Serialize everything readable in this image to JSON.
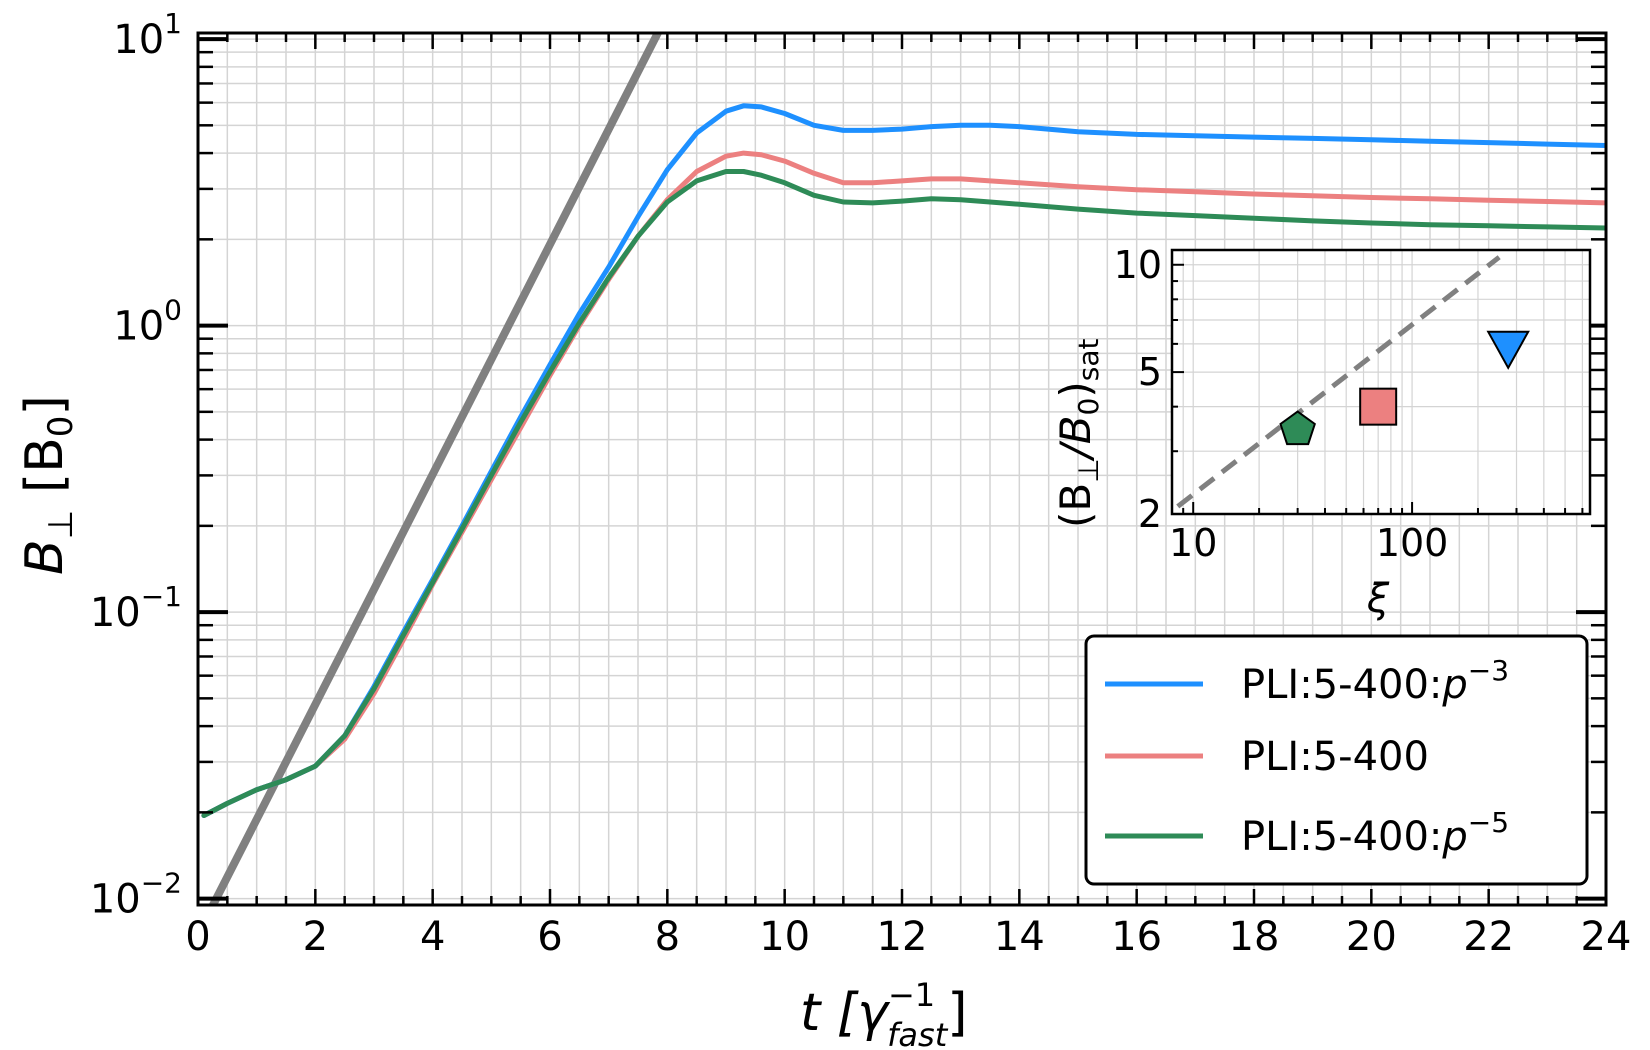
{
  "chart_data": [
    {
      "type": "line",
      "title": "",
      "xlabel": {
        "main": "t [γ",
        "sup": "−1",
        "sub": "fast",
        "close": "]"
      },
      "ylabel": {
        "main": "B",
        "sub": "⊥",
        "rest": " [B",
        "sub2": "0",
        "close": "]"
      },
      "xlim": [
        0,
        24
      ],
      "ylim": [
        0.0095,
        10.5
      ],
      "yscale": "log",
      "grid": true,
      "xticks": [
        {
          "value": 0,
          "label": "0"
        },
        {
          "value": 2,
          "label": "2"
        },
        {
          "value": 4,
          "label": "4"
        },
        {
          "value": 6,
          "label": "6"
        },
        {
          "value": 8,
          "label": "8"
        },
        {
          "value": 10,
          "label": "10"
        },
        {
          "value": 12,
          "label": "12"
        },
        {
          "value": 14,
          "label": "14"
        },
        {
          "value": 16,
          "label": "16"
        },
        {
          "value": 18,
          "label": "18"
        },
        {
          "value": 20,
          "label": "20"
        },
        {
          "value": 22,
          "label": "22"
        },
        {
          "value": 24,
          "label": "24"
        }
      ],
      "yticks": [
        {
          "value": 0.01,
          "base": "10",
          "exp": "−2"
        },
        {
          "value": 0.1,
          "base": "10",
          "exp": "−1"
        },
        {
          "value": 1,
          "base": "10",
          "exp": "0"
        },
        {
          "value": 10,
          "base": "10",
          "exp": "1"
        }
      ],
      "legend": {
        "position": "lower-right"
      },
      "reference_line": {
        "color": "#808080",
        "x": [
          0,
          8
        ],
        "y": [
          0.0075,
          12.2
        ]
      },
      "series": [
        {
          "name": "PLI:5-400:",
          "name_math": "p",
          "name_sup": "−3",
          "color": "#1e90ff",
          "x": [
            0.1,
            0.5,
            1.0,
            1.5,
            2.0,
            2.5,
            3.0,
            3.5,
            4.0,
            4.5,
            5.0,
            5.5,
            6.0,
            6.5,
            7.0,
            7.5,
            8.0,
            8.5,
            9.0,
            9.3,
            9.6,
            10.0,
            10.5,
            11.0,
            11.5,
            12.0,
            12.5,
            13.0,
            13.5,
            14.0,
            15.0,
            16.0,
            17.0,
            18.0,
            19.0,
            20.0,
            21.0,
            22.0,
            23.0,
            24.0
          ],
          "y": [
            0.0195,
            0.0215,
            0.024,
            0.026,
            0.029,
            0.037,
            0.055,
            0.085,
            0.13,
            0.2,
            0.31,
            0.48,
            0.73,
            1.1,
            1.6,
            2.4,
            3.5,
            4.7,
            5.6,
            5.85,
            5.8,
            5.5,
            5.0,
            4.8,
            4.8,
            4.85,
            4.95,
            5.0,
            5.0,
            4.95,
            4.75,
            4.65,
            4.6,
            4.55,
            4.5,
            4.45,
            4.4,
            4.35,
            4.3,
            4.25
          ]
        },
        {
          "name": "PLI:5-400",
          "name_math": "",
          "name_sup": "",
          "color": "#ec8080",
          "x": [
            0.1,
            0.5,
            1.0,
            1.5,
            2.0,
            2.5,
            3.0,
            3.5,
            4.0,
            4.5,
            5.0,
            5.5,
            6.0,
            6.5,
            7.0,
            7.5,
            8.0,
            8.5,
            9.0,
            9.3,
            9.6,
            10.0,
            10.5,
            11.0,
            11.5,
            12.0,
            12.5,
            13.0,
            13.5,
            14.0,
            15.0,
            16.0,
            17.0,
            18.0,
            19.0,
            20.0,
            21.0,
            22.0,
            23.0,
            24.0
          ],
          "y": [
            0.0195,
            0.0215,
            0.024,
            0.026,
            0.029,
            0.036,
            0.052,
            0.08,
            0.125,
            0.19,
            0.29,
            0.44,
            0.67,
            1.0,
            1.45,
            2.05,
            2.75,
            3.45,
            3.9,
            4.0,
            3.95,
            3.75,
            3.4,
            3.15,
            3.15,
            3.2,
            3.25,
            3.25,
            3.2,
            3.15,
            3.05,
            2.98,
            2.93,
            2.88,
            2.84,
            2.8,
            2.77,
            2.74,
            2.71,
            2.68
          ]
        },
        {
          "name": "PLI:5-400:",
          "name_math": "p",
          "name_sup": "−5",
          "color": "#2e8b57",
          "x": [
            0.1,
            0.5,
            1.0,
            1.5,
            2.0,
            2.5,
            3.0,
            3.5,
            4.0,
            4.5,
            5.0,
            5.5,
            6.0,
            6.5,
            7.0,
            7.5,
            8.0,
            8.5,
            9.0,
            9.3,
            9.6,
            10.0,
            10.5,
            11.0,
            11.5,
            12.0,
            12.5,
            13.0,
            13.5,
            14.0,
            15.0,
            16.0,
            17.0,
            18.0,
            19.0,
            20.0,
            21.0,
            22.0,
            23.0,
            24.0
          ],
          "y": [
            0.0195,
            0.0215,
            0.024,
            0.026,
            0.029,
            0.037,
            0.054,
            0.083,
            0.127,
            0.195,
            0.3,
            0.46,
            0.69,
            1.02,
            1.47,
            2.05,
            2.7,
            3.2,
            3.45,
            3.45,
            3.35,
            3.15,
            2.85,
            2.7,
            2.68,
            2.72,
            2.77,
            2.75,
            2.7,
            2.65,
            2.55,
            2.47,
            2.42,
            2.37,
            2.32,
            2.28,
            2.25,
            2.23,
            2.21,
            2.19
          ]
        }
      ]
    },
    {
      "type": "scatter",
      "title": "",
      "xlabel": "ξ",
      "ylabel": {
        "open": "(B",
        "sub": "⊥",
        "rest": "/B",
        "sub2": "0",
        "close": ")",
        "sub3": "sat"
      },
      "xscale": "log",
      "yscale": "log",
      "xlim": [
        8,
        650
      ],
      "ylim": [
        2,
        11
      ],
      "grid": true,
      "xticks": [
        {
          "value": 10,
          "label": "10"
        },
        {
          "value": 100,
          "label": "100"
        }
      ],
      "yticks": [
        {
          "value": 2,
          "label": "2"
        },
        {
          "value": 5,
          "label": "5"
        },
        {
          "value": 10,
          "label": "10"
        }
      ],
      "reference_line": {
        "color": "#808080",
        "style": "dashed",
        "x": [
          8.5,
          250
        ],
        "y": [
          2.1,
          10.5
        ]
      },
      "points": [
        {
          "series": "PLI:5-400:p−5",
          "x": 30,
          "y": 3.45,
          "marker": "pentagon",
          "color": "#2e8b57"
        },
        {
          "series": "PLI:5-400",
          "x": 70,
          "y": 4.0,
          "marker": "square",
          "color": "#ec8080"
        },
        {
          "series": "PLI:5-400:p−3",
          "x": 275,
          "y": 5.85,
          "marker": "triangle-down",
          "color": "#1e90ff"
        }
      ]
    }
  ]
}
